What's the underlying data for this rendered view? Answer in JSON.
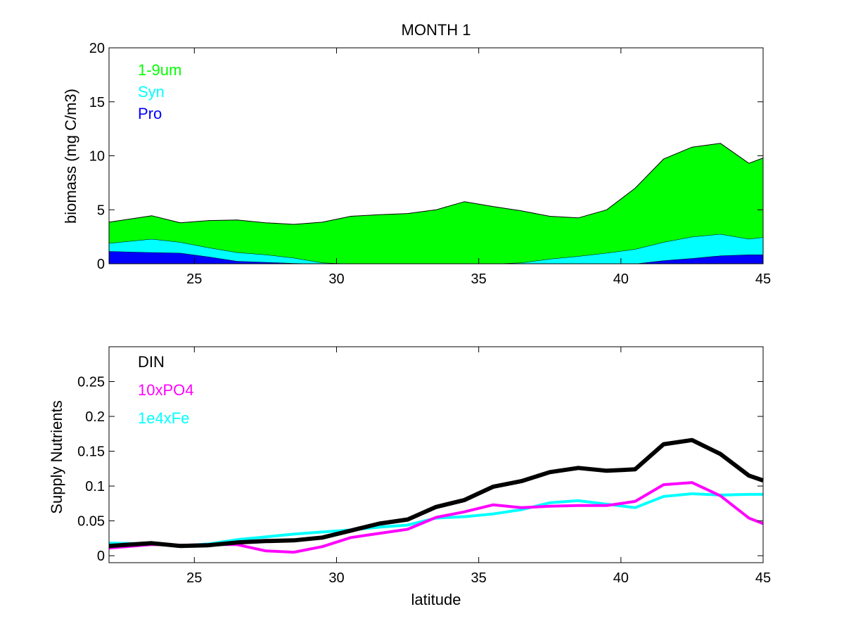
{
  "chart_data": [
    {
      "type": "area",
      "stacked": true,
      "title": "MONTH 1",
      "xlabel": "",
      "ylabel": "biomass (mg C/m3)",
      "xlim": [
        22,
        45
      ],
      "ylim": [
        0,
        20
      ],
      "xticks": [
        25,
        30,
        35,
        40,
        45
      ],
      "yticks": [
        0,
        5,
        10,
        15,
        20
      ],
      "legend_position": "top-left",
      "grid": false,
      "x": [
        22,
        23.5,
        24.5,
        25.5,
        26.5,
        27.5,
        28.5,
        29.5,
        30.5,
        31.5,
        32.5,
        33.5,
        34.5,
        35.5,
        36.5,
        37.5,
        38.5,
        39.5,
        40.5,
        41.5,
        42.5,
        43.5,
        44.5,
        45
      ],
      "series": [
        {
          "name": "Pro",
          "color": "#0000ff",
          "values": [
            1.15,
            1.05,
            1.0,
            0.65,
            0.25,
            0.15,
            0.05,
            0,
            0,
            0,
            0,
            0,
            0,
            0,
            0,
            0,
            0,
            0,
            0,
            0.3,
            0.5,
            0.75,
            0.85,
            0.85
          ]
        },
        {
          "name": "Syn",
          "color": "#00ffff",
          "values": [
            0.75,
            1.25,
            1.0,
            0.85,
            0.8,
            0.7,
            0.5,
            0.1,
            0,
            0,
            0,
            0,
            0,
            0,
            0.1,
            0.45,
            0.7,
            1.0,
            1.35,
            1.7,
            2.0,
            2.0,
            1.45,
            1.6
          ]
        },
        {
          "name": "1-9um",
          "color": "#00ff00",
          "values": [
            1.95,
            2.15,
            1.8,
            2.5,
            3.0,
            2.95,
            3.1,
            3.75,
            4.4,
            4.55,
            4.65,
            5.0,
            5.75,
            5.3,
            4.8,
            3.95,
            3.55,
            4.0,
            5.65,
            7.7,
            8.3,
            8.4,
            7.0,
            7.35
          ]
        }
      ]
    },
    {
      "type": "line",
      "title": "",
      "xlabel": "latitude",
      "ylabel": "Supply Nutrients",
      "xlim": [
        22,
        45
      ],
      "ylim": [
        -0.01,
        0.3
      ],
      "xticks": [
        25,
        30,
        35,
        40,
        45
      ],
      "yticks": [
        0,
        0.05,
        0.1,
        0.15,
        0.2,
        0.25
      ],
      "ytick_labels": [
        "0",
        "0.05",
        "0.1",
        "0.15",
        "0.2",
        "0.25"
      ],
      "legend_position": "top-left",
      "grid": false,
      "x": [
        22,
        23.5,
        24.5,
        25.5,
        26.5,
        27.5,
        28.5,
        29.5,
        30.5,
        31.5,
        32.5,
        33.5,
        34.5,
        35.5,
        36.5,
        37.5,
        38.5,
        39.5,
        40.5,
        41.5,
        42.5,
        43.5,
        44.5,
        45
      ],
      "series": [
        {
          "name": "DIN",
          "color": "#000000",
          "width": 6,
          "values": [
            0.014,
            0.018,
            0.014,
            0.015,
            0.019,
            0.021,
            0.022,
            0.026,
            0.036,
            0.046,
            0.052,
            0.07,
            0.08,
            0.099,
            0.107,
            0.12,
            0.126,
            0.122,
            0.124,
            0.16,
            0.166,
            0.146,
            0.115,
            0.108
          ]
        },
        {
          "name": "10xPO4",
          "color": "#ff00ff",
          "width": 4,
          "values": [
            0.011,
            0.016,
            0.015,
            0.016,
            0.016,
            0.007,
            0.005,
            0.013,
            0.026,
            0.032,
            0.038,
            0.055,
            0.063,
            0.073,
            0.069,
            0.071,
            0.072,
            0.072,
            0.078,
            0.102,
            0.105,
            0.086,
            0.054,
            0.046
          ]
        },
        {
          "name": "1e4xFe",
          "color": "#00ffff",
          "width": 4,
          "values": [
            0.018,
            0.017,
            0.014,
            0.017,
            0.023,
            0.027,
            0.031,
            0.034,
            0.037,
            0.041,
            0.044,
            0.054,
            0.056,
            0.06,
            0.066,
            0.076,
            0.079,
            0.074,
            0.069,
            0.085,
            0.089,
            0.087,
            0.088,
            0.088
          ]
        }
      ]
    }
  ]
}
